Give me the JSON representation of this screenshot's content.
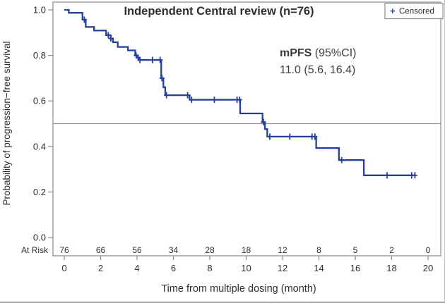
{
  "title": "Independent Central review (n=76)",
  "legend": {
    "marker": "+",
    "label": "Censored"
  },
  "annotation": {
    "label_bold": "mPFS",
    "label_rest": " (95%CI)",
    "value": "11.0 (5.6, 16.4)"
  },
  "colors": {
    "curve": "#24409e",
    "frame": "#8a8a8a",
    "reference_line": "#8f8f8f",
    "text_dark": "#2f2f2f",
    "text_mid": "#3d3d3d"
  },
  "chart_data": {
    "type": "line",
    "subtype": "kaplan-meier-step",
    "title": "Independent Central review (n=76)",
    "xlabel": "Time from multiple dosing (month)",
    "ylabel": "Probability of progression−free survival",
    "xlim": [
      0,
      20
    ],
    "ylim": [
      0.0,
      1.0
    ],
    "xticks": [
      0,
      2,
      4,
      6,
      8,
      10,
      12,
      14,
      16,
      18,
      20
    ],
    "yticks": [
      0.0,
      0.2,
      0.4,
      0.6,
      0.8,
      1.0
    ],
    "grid": false,
    "legend_position": "top-right",
    "reference_line_y": 0.5,
    "median_pfs": "11.0",
    "ci95_low": "5.6",
    "ci95_high": "16.4",
    "n": 76,
    "steps": [
      [
        0,
        1.0
      ],
      [
        0.25,
        0.987
      ],
      [
        1.0,
        0.957
      ],
      [
        1.18,
        0.925
      ],
      [
        1.64,
        0.909
      ],
      [
        2.3,
        0.889
      ],
      [
        2.55,
        0.874
      ],
      [
        2.68,
        0.858
      ],
      [
        2.94,
        0.837
      ],
      [
        3.5,
        0.822
      ],
      [
        3.9,
        0.8
      ],
      [
        4.02,
        0.79
      ],
      [
        4.14,
        0.78
      ],
      [
        5.33,
        0.7
      ],
      [
        5.45,
        0.66
      ],
      [
        5.55,
        0.625
      ],
      [
        6.89,
        0.605
      ],
      [
        9.67,
        0.545
      ],
      [
        10.9,
        0.507
      ],
      [
        11.03,
        0.476
      ],
      [
        11.16,
        0.443
      ],
      [
        13.85,
        0.393
      ],
      [
        15.1,
        0.34
      ],
      [
        16.47,
        0.273
      ]
    ],
    "end_time": 19.3,
    "censor_marks": [
      [
        1.1,
        0.957
      ],
      [
        2.42,
        0.889
      ],
      [
        2.56,
        0.874
      ],
      [
        3.95,
        0.8
      ],
      [
        4.06,
        0.79
      ],
      [
        4.16,
        0.78
      ],
      [
        4.85,
        0.78
      ],
      [
        5.27,
        0.78
      ],
      [
        5.37,
        0.7
      ],
      [
        5.62,
        0.625
      ],
      [
        6.78,
        0.625
      ],
      [
        7.0,
        0.605
      ],
      [
        8.25,
        0.605
      ],
      [
        9.5,
        0.605
      ],
      [
        9.64,
        0.605
      ],
      [
        10.95,
        0.507
      ],
      [
        11.3,
        0.443
      ],
      [
        12.4,
        0.443
      ],
      [
        13.62,
        0.443
      ],
      [
        13.78,
        0.443
      ],
      [
        15.25,
        0.34
      ],
      [
        17.75,
        0.273
      ],
      [
        19.1,
        0.273
      ],
      [
        19.28,
        0.273
      ]
    ],
    "at_risk": {
      "label": "At Risk",
      "times": [
        0,
        2,
        4,
        6,
        8,
        10,
        12,
        14,
        16,
        18,
        20
      ],
      "values": [
        76,
        66,
        56,
        34,
        28,
        18,
        12,
        8,
        5,
        2,
        0
      ]
    }
  }
}
